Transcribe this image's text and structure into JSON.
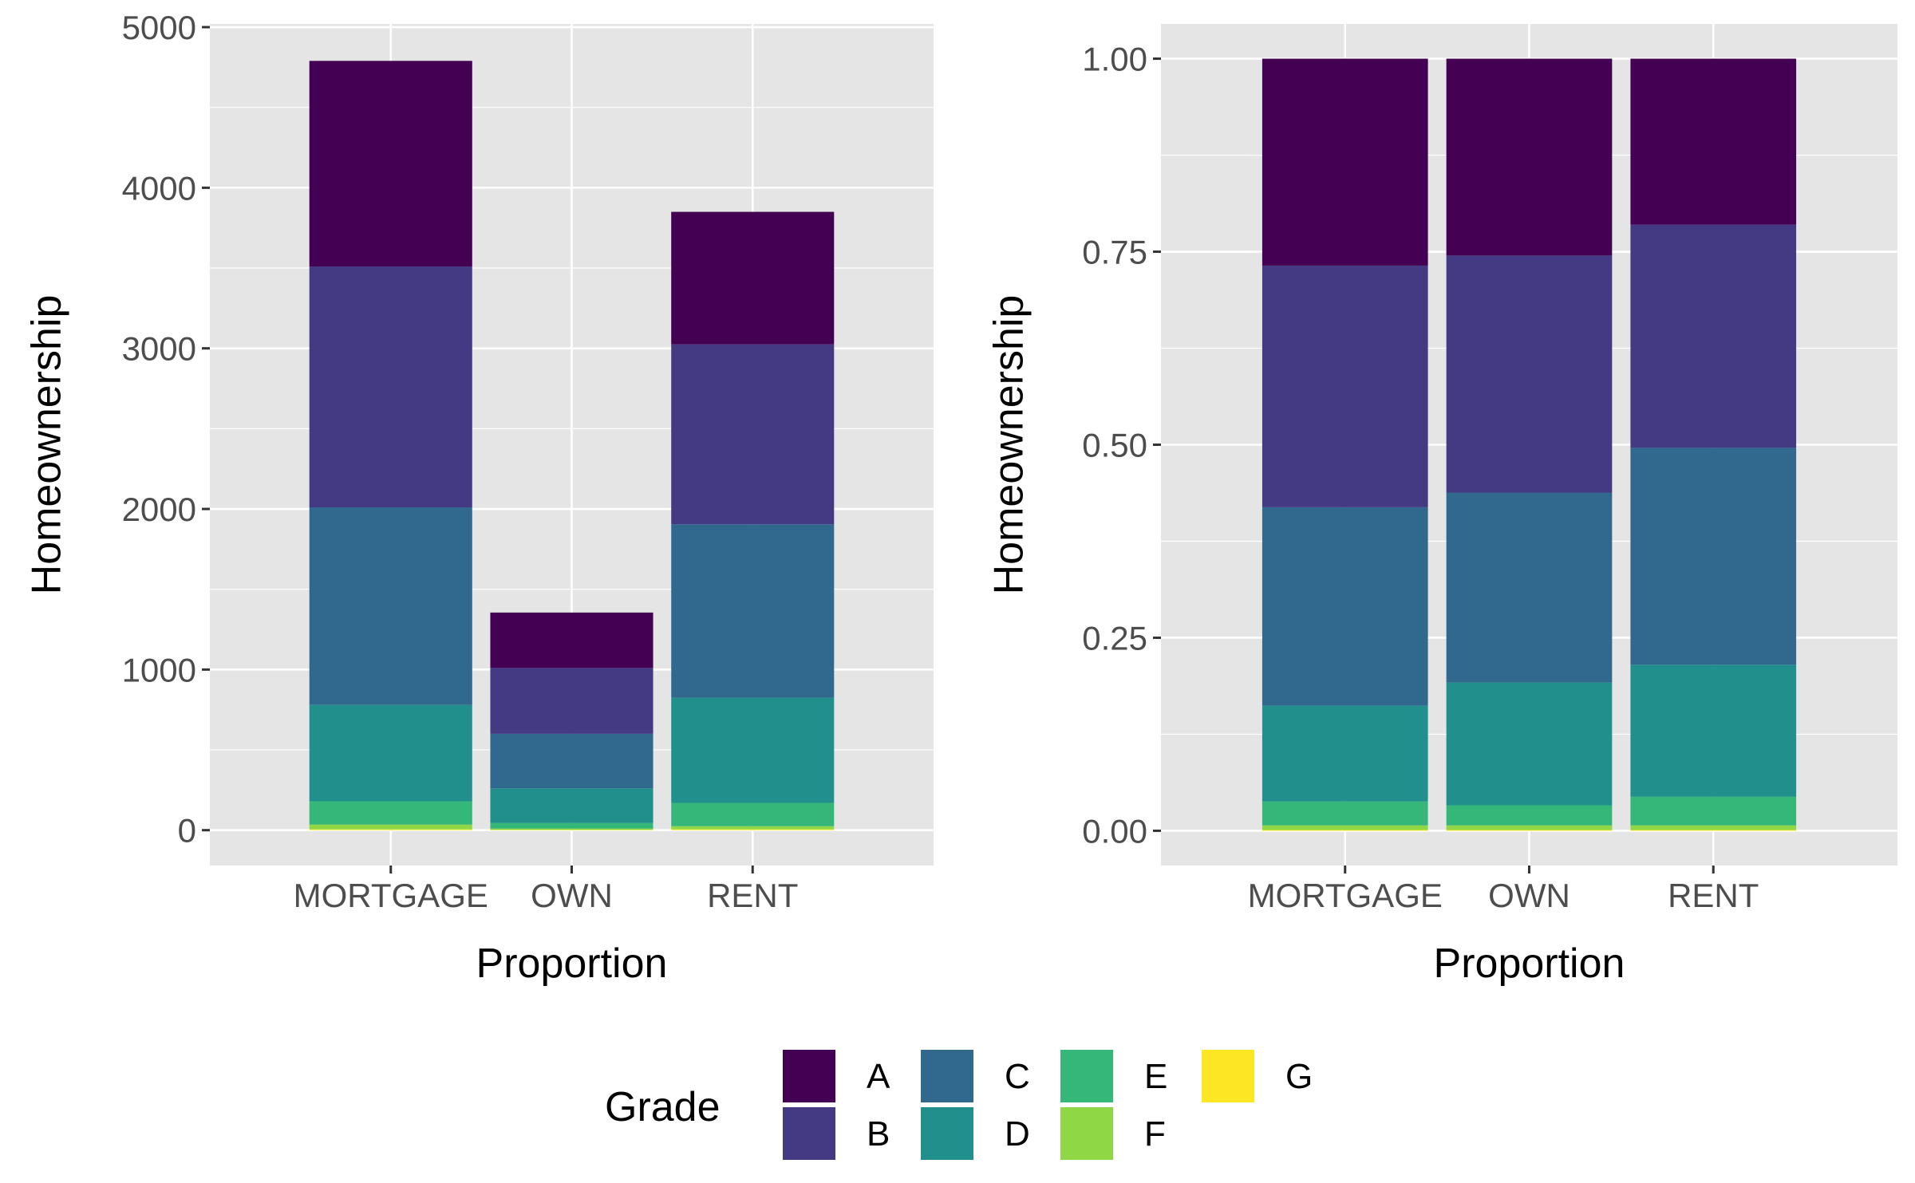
{
  "chart_data": [
    {
      "type": "bar",
      "stacked": true,
      "categories": [
        "MORTGAGE",
        "OWN",
        "RENT"
      ],
      "xlabel": "Proportion",
      "ylabel": "Homeownership",
      "ylim": [
        -220,
        5020
      ],
      "yticks": [
        0,
        1000,
        2000,
        3000,
        4000,
        5000
      ],
      "ytick_labels": [
        "0",
        "1000",
        "2000",
        "3000",
        "4000",
        "5000"
      ],
      "grid": true,
      "series": [
        {
          "name": "G",
          "values": [
            5,
            2,
            5
          ]
        },
        {
          "name": "F",
          "values": [
            30,
            8,
            20
          ]
        },
        {
          "name": "E",
          "values": [
            145,
            35,
            145
          ]
        },
        {
          "name": "D",
          "values": [
            600,
            215,
            655
          ]
        },
        {
          "name": "C",
          "values": [
            1230,
            340,
            1080
          ]
        },
        {
          "name": "B",
          "values": [
            1500,
            410,
            1120
          ]
        },
        {
          "name": "A",
          "values": [
            1280,
            345,
            825
          ]
        }
      ]
    },
    {
      "type": "bar",
      "stacked": true,
      "categories": [
        "MORTGAGE",
        "OWN",
        "RENT"
      ],
      "xlabel": "Proportion",
      "ylabel": "Homeownership",
      "ylim": [
        -0.045,
        1.045
      ],
      "yticks": [
        0,
        0.25,
        0.5,
        0.75,
        1
      ],
      "ytick_labels": [
        "0.00",
        "0.25",
        "0.50",
        "0.75",
        "1.00"
      ],
      "grid": true,
      "series": [
        {
          "name": "G",
          "values": [
            0.001,
            0.001,
            0.001
          ]
        },
        {
          "name": "F",
          "values": [
            0.006,
            0.006,
            0.006
          ]
        },
        {
          "name": "E",
          "values": [
            0.031,
            0.026,
            0.037
          ]
        },
        {
          "name": "D",
          "values": [
            0.124,
            0.159,
            0.171
          ]
        },
        {
          "name": "C",
          "values": [
            0.257,
            0.246,
            0.281
          ]
        },
        {
          "name": "B",
          "values": [
            0.313,
            0.307,
            0.289
          ]
        },
        {
          "name": "A",
          "values": [
            0.268,
            0.255,
            0.215
          ]
        }
      ]
    }
  ],
  "legend": {
    "title": "Grade",
    "position": "bottom",
    "items": [
      {
        "label": "A",
        "color": "#440154"
      },
      {
        "label": "B",
        "color": "#443A83"
      },
      {
        "label": "C",
        "color": "#31688E"
      },
      {
        "label": "D",
        "color": "#21908C"
      },
      {
        "label": "E",
        "color": "#35B779"
      },
      {
        "label": "F",
        "color": "#8FD744"
      },
      {
        "label": "G",
        "color": "#FDE725"
      }
    ]
  },
  "colors": {
    "panel_background": "#E5E5E5",
    "grid_major": "#FFFFFF",
    "tick": "#333333"
  }
}
